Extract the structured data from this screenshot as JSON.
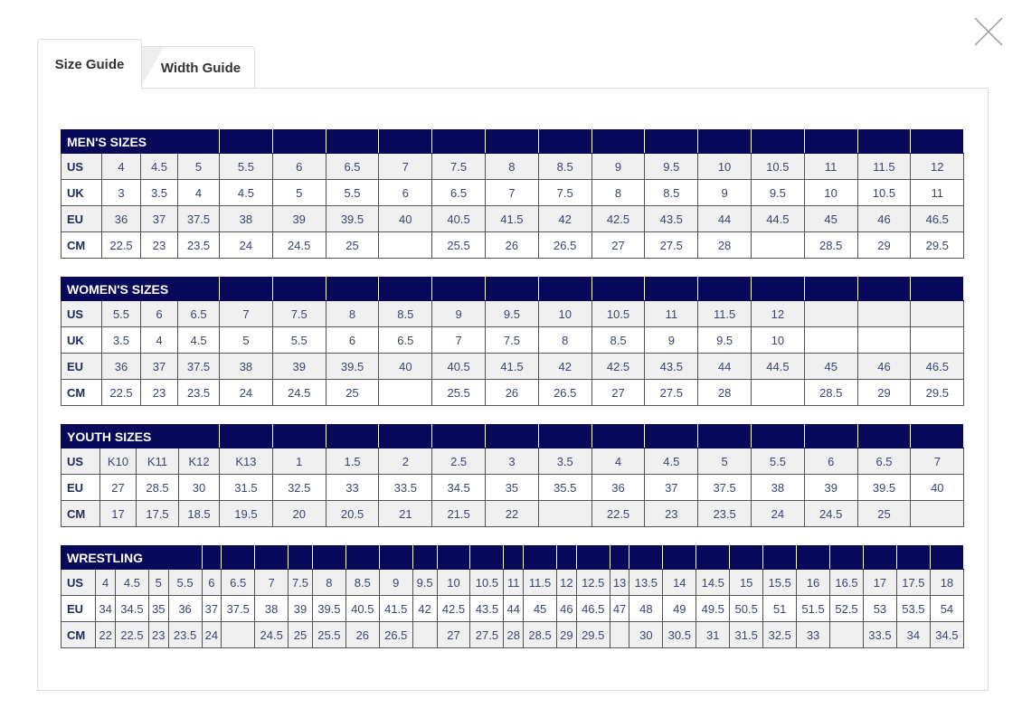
{
  "close_icon": "close-icon",
  "tabs": [
    {
      "label": "Size Guide",
      "active": true
    },
    {
      "label": "Width Guide",
      "active": false
    }
  ],
  "colors": {
    "header": "#07085a",
    "text": "#3a4670",
    "row_alt": "#f0f0f0"
  },
  "tables": [
    {
      "title": "MEN'S SIZES",
      "title_span": 4,
      "rows": [
        {
          "label": "US",
          "values": [
            "4",
            "4.5",
            "5",
            "5.5",
            "6",
            "6.5",
            "7",
            "7.5",
            "8",
            "8.5",
            "9",
            "9.5",
            "10",
            "10.5",
            "11",
            "11.5",
            "12"
          ]
        },
        {
          "label": "UK",
          "values": [
            "3",
            "3.5",
            "4",
            "4.5",
            "5",
            "5.5",
            "6",
            "6.5",
            "7",
            "7.5",
            "8",
            "8.5",
            "9",
            "9.5",
            "10",
            "10.5",
            "11"
          ]
        },
        {
          "label": "EU",
          "values": [
            "36",
            "37",
            "37.5",
            "38",
            "39",
            "39.5",
            "40",
            "40.5",
            "41.5",
            "42",
            "42.5",
            "43.5",
            "44",
            "44.5",
            "45",
            "46",
            "46.5"
          ]
        },
        {
          "label": "CM",
          "values": [
            "22.5",
            "23",
            "23.5",
            "24",
            "24.5",
            "25",
            "",
            "25.5",
            "26",
            "26.5",
            "27",
            "27.5",
            "28",
            "",
            "28.5",
            "29",
            "29.5"
          ]
        }
      ]
    },
    {
      "title": "WOMEN'S SIZES",
      "title_span": 4,
      "rows": [
        {
          "label": "US",
          "values": [
            "5.5",
            "6",
            "6.5",
            "7",
            "7.5",
            "8",
            "8.5",
            "9",
            "9.5",
            "10",
            "10.5",
            "11",
            "11.5",
            "12",
            "",
            "",
            ""
          ]
        },
        {
          "label": "UK",
          "values": [
            "3.5",
            "4",
            "4.5",
            "5",
            "5.5",
            "6",
            "6.5",
            "7",
            "7.5",
            "8",
            "8.5",
            "9",
            "9.5",
            "10",
            "",
            "",
            ""
          ]
        },
        {
          "label": "EU",
          "values": [
            "36",
            "37",
            "37.5",
            "38",
            "39",
            "39.5",
            "40",
            "40.5",
            "41.5",
            "42",
            "42.5",
            "43.5",
            "44",
            "44.5",
            "45",
            "46",
            "46.5"
          ]
        },
        {
          "label": "CM",
          "values": [
            "22.5",
            "23",
            "23.5",
            "24",
            "24.5",
            "25",
            "",
            "25.5",
            "26",
            "26.5",
            "27",
            "27.5",
            "28",
            "",
            "28.5",
            "29",
            "29.5"
          ]
        }
      ]
    },
    {
      "title": "YOUTH SIZES",
      "title_span": 4,
      "rows": [
        {
          "label": "US",
          "values": [
            "K10",
            "K11",
            "K12",
            "K13",
            "1",
            "1.5",
            "2",
            "2.5",
            "3",
            "3.5",
            "4",
            "4.5",
            "5",
            "5.5",
            "6",
            "6.5",
            "7"
          ]
        },
        {
          "label": "EU",
          "values": [
            "27",
            "28.5",
            "30",
            "31.5",
            "32.5",
            "33",
            "33.5",
            "34.5",
            "35",
            "35.5",
            "36",
            "37",
            "37.5",
            "38",
            "39",
            "39.5",
            "40"
          ]
        },
        {
          "label": "CM",
          "values": [
            "17",
            "17.5",
            "18.5",
            "19.5",
            "20",
            "20.5",
            "21",
            "21.5",
            "22",
            "",
            "22.5",
            "23",
            "23.5",
            "24",
            "24.5",
            "25",
            ""
          ]
        }
      ]
    },
    {
      "title": "WRESTLING",
      "title_span": 5,
      "rows": [
        {
          "label": "US",
          "values": [
            "4",
            "4.5",
            "5",
            "5.5",
            "6",
            "6.5",
            "7",
            "7.5",
            "8",
            "8.5",
            "9",
            "9.5",
            "10",
            "10.5",
            "11",
            "11.5",
            "12",
            "12.5",
            "13",
            "13.5",
            "14",
            "14.5",
            "15",
            "15.5",
            "16",
            "16.5",
            "17",
            "17.5",
            "18"
          ]
        },
        {
          "label": "EU",
          "values": [
            "34",
            "34.5",
            "35",
            "36",
            "37",
            "37.5",
            "38",
            "39",
            "39.5",
            "40.5",
            "41.5",
            "42",
            "42.5",
            "43.5",
            "44",
            "45",
            "46",
            "46.5",
            "47",
            "48",
            "49",
            "49.5",
            "50.5",
            "51",
            "51.5",
            "52.5",
            "53",
            "53.5",
            "54"
          ]
        },
        {
          "label": "CM",
          "values": [
            "22",
            "22.5",
            "23",
            "23.5",
            "24",
            "",
            "24.5",
            "25",
            "25.5",
            "26",
            "26.5",
            "",
            "27",
            "27.5",
            "28",
            "28.5",
            "29",
            "29.5",
            "",
            "30",
            "30.5",
            "31",
            "31.5",
            "32.5",
            "33",
            "",
            "33.5",
            "34",
            "34.5"
          ]
        }
      ]
    }
  ]
}
